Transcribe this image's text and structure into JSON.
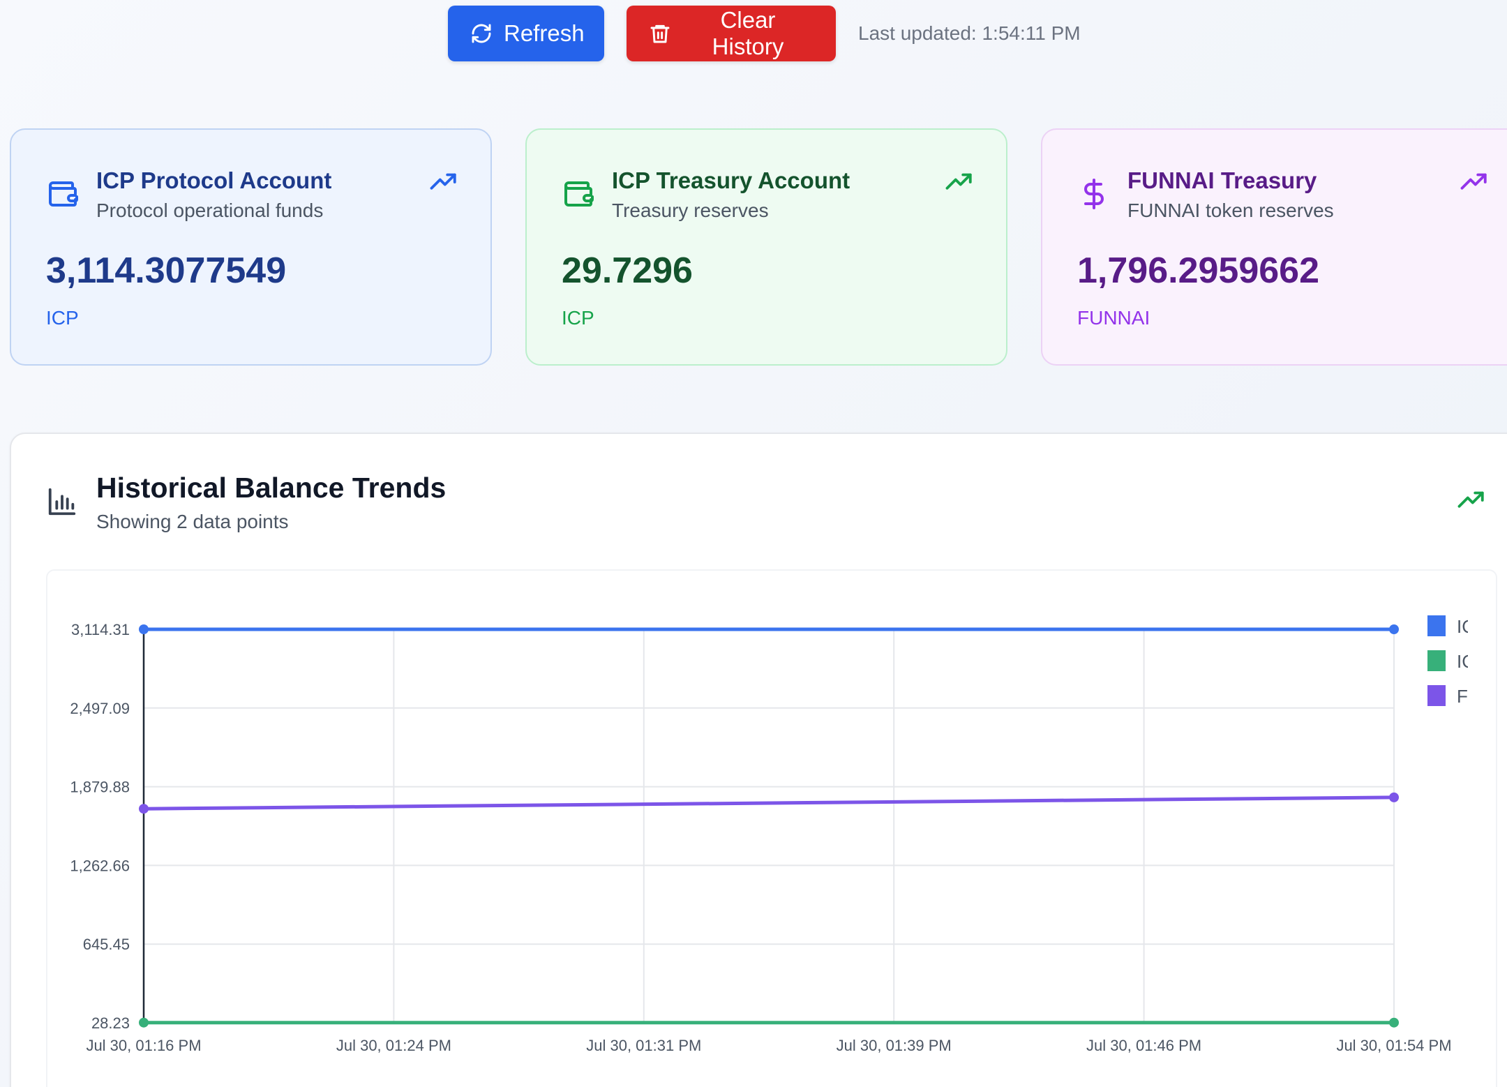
{
  "toolbar": {
    "refresh_label": "Refresh",
    "clear_label": "Clear History",
    "last_updated": "Last updated: 1:54:11 PM"
  },
  "cards": [
    {
      "title": "ICP Protocol Account",
      "subtitle": "Protocol operational funds",
      "value": "3,114.3077549",
      "unit": "ICP",
      "icon": "wallet-icon",
      "trend_icon": "trending-up-icon",
      "accent": "#2563eb"
    },
    {
      "title": "ICP Treasury Account",
      "subtitle": "Treasury reserves",
      "value": "29.7296",
      "unit": "ICP",
      "icon": "wallet-icon",
      "trend_icon": "trending-up-icon",
      "accent": "#16a34a"
    },
    {
      "title": "FUNNAI Treasury",
      "subtitle": "FUNNAI token reserves",
      "value": "1,796.2959662",
      "unit": "FUNNAI",
      "icon": "dollar-icon",
      "trend_icon": "trending-up-icon",
      "accent": "#9333ea"
    }
  ],
  "history": {
    "title": "Historical Balance Trends",
    "subtitle": "Showing 2 data points",
    "icon": "bar-chart-icon",
    "trend_icon": "trending-up-icon"
  },
  "chart_data": {
    "type": "line",
    "x": [
      "Jul 30, 01:16 PM",
      "Jul 30, 01:54 PM"
    ],
    "x_tick_labels": [
      "Jul 30, 01:16 PM",
      "Jul 30, 01:24 PM",
      "Jul 30, 01:31 PM",
      "Jul 30, 01:39 PM",
      "Jul 30, 01:46 PM",
      "Jul 30, 01:54 PM"
    ],
    "y_tick_labels": [
      "3,114.31",
      "2,497.09",
      "1,879.88",
      "1,262.66",
      "645.45",
      "28.23"
    ],
    "y_ticks": [
      3114.31,
      2497.09,
      1879.88,
      1262.66,
      645.45,
      28.23
    ],
    "ylim": [
      28.23,
      3114.31
    ],
    "grid": true,
    "legend_position": "right",
    "series": [
      {
        "name": "ICP P",
        "color": "#3b74ee",
        "values": [
          3114.31,
          3114.31
        ]
      },
      {
        "name": "ICP T",
        "color": "#37b07a",
        "values": [
          29.73,
          29.73
        ]
      },
      {
        "name": "FUNN",
        "color": "#7c55e8",
        "values": [
          1707.0,
          1796.3
        ]
      }
    ]
  }
}
